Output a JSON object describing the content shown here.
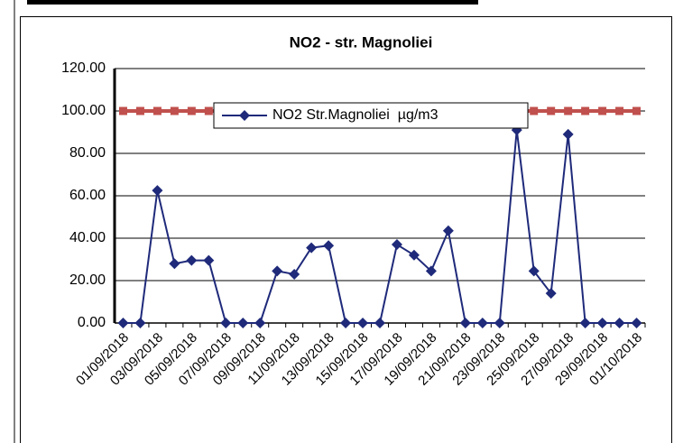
{
  "chart_data": {
    "type": "line",
    "title": "NO2 - str. Magnoliei",
    "categories": [
      "01/09/2018",
      null,
      "03/09/2018",
      null,
      "05/09/2018",
      null,
      "07/09/2018",
      null,
      "09/09/2018",
      null,
      "11/09/2018",
      null,
      "13/09/2018",
      null,
      "15/09/2018",
      null,
      "17/09/2018",
      null,
      "19/09/2018",
      null,
      "21/09/2018",
      null,
      "23/09/2018",
      null,
      "25/09/2018",
      null,
      "27/09/2018",
      null,
      "29/09/2018",
      null,
      "01/10/2018"
    ],
    "series": [
      {
        "name": "NO2 Str.Magnoliei  µg/m3",
        "color": "#1f2a7a",
        "values": [
          0,
          0,
          62.5,
          28,
          29.5,
          29.5,
          0,
          0,
          0,
          24.5,
          23,
          35.5,
          36.5,
          0,
          0,
          0,
          37,
          32,
          24.5,
          43.5,
          0,
          0,
          0,
          91,
          24.5,
          14,
          89,
          0,
          0,
          0,
          0
        ]
      },
      {
        "color": "#c0504d",
        "values": [
          100,
          100,
          100,
          100,
          100,
          100,
          100,
          100,
          100,
          100,
          100,
          100,
          100,
          100,
          100,
          100,
          100,
          100,
          100,
          100,
          100,
          100,
          100,
          100,
          100,
          100,
          100,
          100,
          100,
          100,
          100
        ]
      }
    ],
    "ylim": [
      0,
      120
    ],
    "yticks": [
      {
        "value": 0,
        "label": "0.00"
      },
      {
        "value": 20,
        "label": "20.00"
      },
      {
        "value": 40,
        "label": "40.00"
      },
      {
        "value": 60,
        "label": "60.00"
      },
      {
        "value": 80,
        "label": "80.00"
      },
      {
        "value": 100,
        "label": "100.00"
      },
      {
        "value": 120,
        "label": "120.00"
      }
    ],
    "grid": true,
    "legend": "top"
  }
}
